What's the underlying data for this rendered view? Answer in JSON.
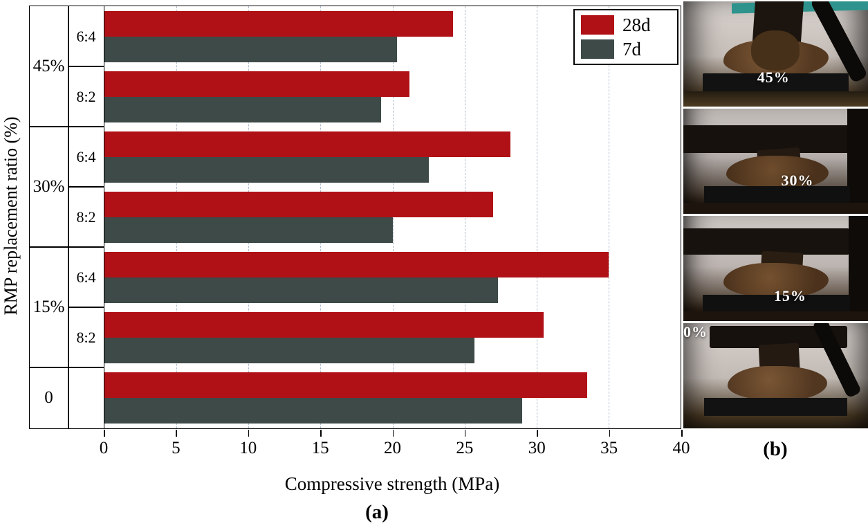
{
  "figure": {
    "caption_a": "(a)",
    "caption_b": "(b)"
  },
  "chart_data": {
    "type": "bar",
    "orientation": "horizontal",
    "title": "",
    "xlabel": "Compressive strength (MPa)",
    "ylabel": "RMP replacement ratio (%)",
    "xlim": [
      0,
      40
    ],
    "xticks": [
      0,
      5,
      10,
      15,
      20,
      25,
      30,
      35,
      40
    ],
    "grid": "vertical-dashed",
    "grid_color": "#aebccb",
    "legend": {
      "position": "top-right",
      "entries": [
        {
          "label": "28d",
          "color": "#b01116"
        },
        {
          "label": "7d",
          "color": "#3d4a47"
        }
      ]
    },
    "groups": [
      {
        "label": "45%",
        "pairs": [
          {
            "sublabel": "6:4",
            "values": {
              "28d": 24.2,
              "7d": 20.3
            }
          },
          {
            "sublabel": "8:2",
            "values": {
              "28d": 21.2,
              "7d": 19.2
            }
          }
        ]
      },
      {
        "label": "30%",
        "pairs": [
          {
            "sublabel": "6:4",
            "values": {
              "28d": 28.2,
              "7d": 22.5
            }
          },
          {
            "sublabel": "8:2",
            "values": {
              "28d": 27.0,
              "7d": 20.0
            }
          }
        ]
      },
      {
        "label": "15%",
        "pairs": [
          {
            "sublabel": "6:4",
            "values": {
              "28d": 35.0,
              "7d": 27.3
            }
          },
          {
            "sublabel": "8:2",
            "values": {
              "28d": 30.5,
              "7d": 25.7
            }
          }
        ]
      },
      {
        "label": "0",
        "pairs": [
          {
            "sublabel": "",
            "values": {
              "28d": 33.5,
              "7d": 29.0
            }
          }
        ]
      }
    ]
  },
  "photos": [
    {
      "label": "45%"
    },
    {
      "label": "30%"
    },
    {
      "label": "15%"
    },
    {
      "label": "0%"
    }
  ]
}
